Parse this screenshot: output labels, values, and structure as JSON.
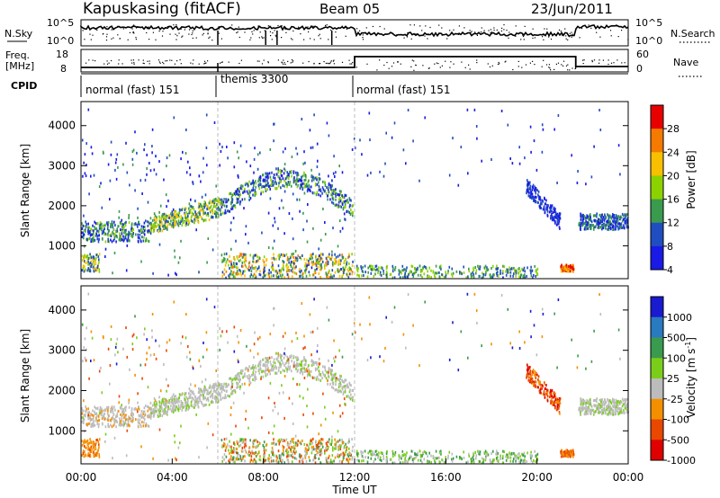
{
  "header": {
    "title": "Kapuskasing (fitACF)",
    "beam": "Beam 05",
    "date": "23/Jun/2011"
  },
  "chart_data": [
    {
      "type": "line",
      "panel": "noise",
      "left_label": "N.Sky",
      "right_label": "N.Search",
      "left_ticks": [
        "10^5",
        "10^0"
      ],
      "right_ticks": [
        "10^5",
        "10^0"
      ],
      "x_range_hours": [
        0,
        24
      ]
    },
    {
      "type": "line",
      "panel": "frequency-nave",
      "left_label_line1": "Freq.",
      "left_label_line2": "[MHz]",
      "right_label": "Nave",
      "left_ticks": [
        "18",
        "8"
      ],
      "right_ticks": [
        "60",
        "0"
      ],
      "x_range_hours": [
        0,
        24
      ]
    },
    {
      "type": "table",
      "panel": "cpid",
      "label": "CPID",
      "segments": [
        {
          "label": "normal (fast) 151",
          "start_hour": 0,
          "end_hour": 6
        },
        {
          "label": "themis 3300",
          "start_hour": 6,
          "end_hour": 12
        },
        {
          "label": "normal (fast) 151",
          "start_hour": 12,
          "end_hour": 24
        }
      ]
    },
    {
      "type": "heatmap",
      "panel": "power",
      "ylabel": "Slant Range [km]",
      "yticks": [
        "1000",
        "2000",
        "3000",
        "4000"
      ],
      "ylim": [
        180,
        4600
      ],
      "colorbar": {
        "label": "Power [dB]",
        "ticks": [
          "28",
          "24",
          "20",
          "16",
          "12",
          "8",
          "4"
        ],
        "colors": [
          "#e80000",
          "#f47a00",
          "#f8c000",
          "#8cd200",
          "#3a9a4e",
          "#204ec0",
          "#1a1ae6"
        ]
      }
    },
    {
      "type": "heatmap",
      "panel": "velocity",
      "ylabel": "Slant Range [km]",
      "yticks": [
        "1000",
        "2000",
        "3000",
        "4000"
      ],
      "ylim": [
        180,
        4600
      ],
      "colorbar": {
        "label": "Velocity [m s",
        "label_sup": "-1",
        "label_end": "]",
        "ticks": [
          "1000",
          "500",
          "100",
          "25",
          "-25",
          "-100",
          "-500",
          "-1000"
        ],
        "colors": [
          "#1a1ad0",
          "#2a7ac0",
          "#3a9a4e",
          "#7ace1a",
          "#bcbcbc",
          "#f49000",
          "#e84800",
          "#e00000"
        ]
      }
    }
  ],
  "xaxis": {
    "label": "Time UT",
    "ticks": [
      "00:00",
      "04:00",
      "08:00",
      "12:00",
      "16:00",
      "20:00",
      "00:00"
    ]
  }
}
